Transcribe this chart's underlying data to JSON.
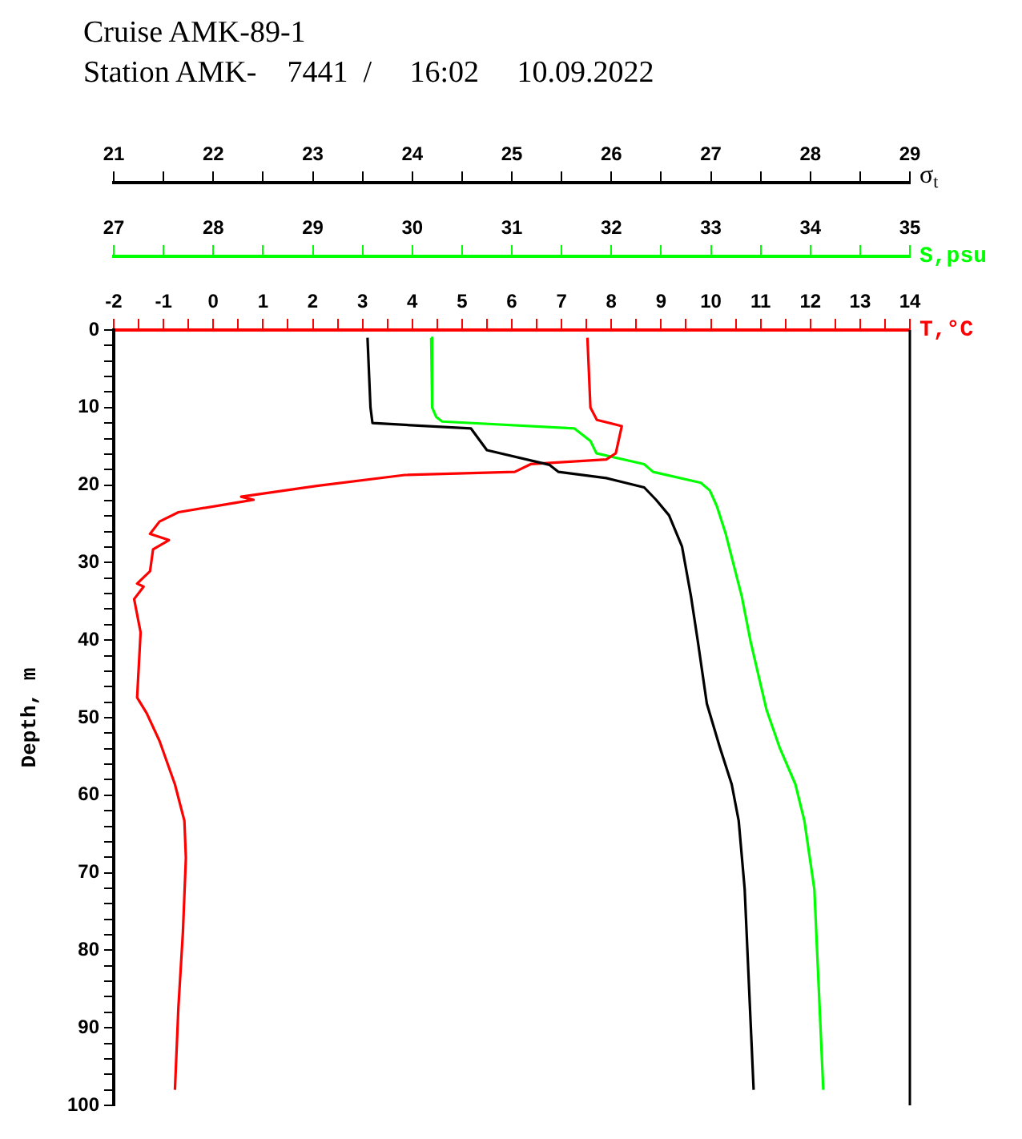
{
  "chart_data": [
    {
      "type": "line",
      "title": "Cruise AMK-89-1",
      "subtitle": "Station AMK-    7441  /     16:02     10.09.2022",
      "xlabel": "T,°C",
      "x2label": "S,psu",
      "ylabel": "Depth, m",
      "grid": false,
      "xlim": [
        -2,
        14
      ],
      "xticks": [
        -2,
        {
          "value": -1.5,
          "label": null
        },
        -1,
        {
          "value": -0.5,
          "label": null
        },
        0,
        {
          "value": 0.5,
          "label": null
        },
        1,
        {
          "value": 1.5,
          "label": null
        },
        2,
        {
          "value": 2.5,
          "label": null
        },
        3,
        {
          "value": 3.5,
          "label": null
        },
        4,
        {
          "value": 4.5,
          "label": null
        },
        5,
        {
          "value": 5.5,
          "label": null
        },
        6,
        {
          "value": 6.5,
          "label": null
        },
        7,
        {
          "value": 7.5,
          "label": null
        },
        8,
        {
          "value": 8.5,
          "label": null
        },
        9,
        {
          "value": 9.5,
          "label": null
        },
        10,
        {
          "value": 10.5,
          "label": null
        },
        11,
        {
          "value": 11.5,
          "label": null
        },
        12,
        {
          "value": 12.5,
          "label": null
        },
        13,
        {
          "value": 13.5,
          "label": null
        },
        14
      ],
      "x2lim": [
        27,
        35
      ],
      "x2ticks": [
        27,
        {
          "value": 27.5,
          "label": null
        },
        28,
        {
          "value": 28.5,
          "label": null
        },
        29,
        {
          "value": 29.5,
          "label": null
        },
        30,
        {
          "value": 30.5,
          "label": null
        },
        31,
        {
          "value": 31.5,
          "label": null
        },
        32,
        {
          "value": 32.5,
          "label": null
        },
        33,
        {
          "value": 33.5,
          "label": null
        },
        34,
        {
          "value": 34.5,
          "label": null
        },
        35
      ],
      "ylim": [
        100,
        0
      ],
      "yticks": [
        0,
        {
          "value": 2,
          "label": null
        },
        {
          "value": 4,
          "label": null
        },
        {
          "value": 6,
          "label": null
        },
        {
          "value": 8,
          "label": null
        },
        10,
        {
          "value": 12,
          "label": null
        },
        {
          "value": 14,
          "label": null
        },
        {
          "value": 16,
          "label": null
        },
        {
          "value": 18,
          "label": null
        },
        20,
        {
          "value": 22,
          "label": null
        },
        {
          "value": 24,
          "label": null
        },
        {
          "value": 26,
          "label": null
        },
        {
          "value": 28,
          "label": null
        },
        30,
        {
          "value": 32,
          "label": null
        },
        {
          "value": 34,
          "label": null
        },
        {
          "value": 36,
          "label": null
        },
        {
          "value": 38,
          "label": null
        },
        40,
        {
          "value": 42,
          "label": null
        },
        {
          "value": 44,
          "label": null
        },
        {
          "value": 46,
          "label": null
        },
        {
          "value": 48,
          "label": null
        },
        50,
        {
          "value": 52,
          "label": null
        },
        {
          "value": 54,
          "label": null
        },
        {
          "value": 56,
          "label": null
        },
        {
          "value": 58,
          "label": null
        },
        60,
        {
          "value": 62,
          "label": null
        },
        {
          "value": 64,
          "label": null
        },
        {
          "value": 66,
          "label": null
        },
        {
          "value": 68,
          "label": null
        },
        70,
        {
          "value": 72,
          "label": null
        },
        {
          "value": 74,
          "label": null
        },
        {
          "value": 76,
          "label": null
        },
        {
          "value": 78,
          "label": null
        },
        80,
        {
          "value": 82,
          "label": null
        },
        {
          "value": 84,
          "label": null
        },
        {
          "value": 86,
          "label": null
        },
        {
          "value": 88,
          "label": null
        },
        90,
        {
          "value": 92,
          "label": null
        },
        {
          "value": 94,
          "label": null
        },
        {
          "value": 96,
          "label": null
        },
        {
          "value": 98,
          "label": null
        },
        100
      ],
      "series": [
        {
          "color": "#ff0000",
          "x": [
            7.52,
            7.58,
            7.71,
            8.21,
            8.09,
            7.9,
            6.38,
            6.06,
            3.85,
            2.08,
            0.56,
            0.81,
            0.43,
            -0.7,
            -1.08,
            -1.27,
            -0.89,
            -1.21,
            -1.27,
            -1.53,
            -1.4,
            -1.59,
            -1.46,
            -1.53,
            -1.34,
            -1.08,
            -0.77,
            -0.58,
            -0.55,
            -0.61,
            -0.7,
            -0.77
          ],
          "values": [
            1,
            10,
            11.6,
            12.4,
            15.9,
            16.7,
            17.3,
            18.3,
            18.7,
            20.1,
            21.5,
            21.9,
            22.3,
            23.5,
            24.7,
            26.3,
            27.1,
            28.3,
            31.1,
            32.7,
            33.1,
            34.7,
            39,
            47.4,
            49.4,
            53,
            58.6,
            63.3,
            68.1,
            77.7,
            87.3,
            98
          ]
        },
        {
          "color": "#00ff00",
          "axis": "x2",
          "x": [
            30.19,
            30.2,
            30.24,
            30.3,
            31.63,
            31.79,
            31.85,
            32.33,
            32.42,
            32.9,
            32.99,
            33.06,
            33.15,
            33.31,
            33.4,
            33.56,
            33.69,
            33.85,
            33.94,
            34.04,
            34.13
          ],
          "values": [
            1,
            10,
            11.2,
            11.8,
            12.7,
            14.3,
            15.9,
            17.3,
            18.3,
            19.7,
            20.7,
            22.7,
            26.3,
            34.3,
            40.2,
            49,
            53.8,
            58.6,
            63.3,
            72.1,
            98
          ]
        }
      ]
    },
    {
      "type": "line",
      "xlabel": "σ$_{t}$",
      "tick_labels": "x",
      "grid": false,
      "xlim": [
        21,
        29
      ],
      "xticks": [
        21,
        {
          "value": 21.5,
          "label": null
        },
        22,
        {
          "value": 22.5,
          "label": null
        },
        23,
        {
          "value": 23.5,
          "label": null
        },
        24,
        {
          "value": 24.5,
          "label": null
        },
        25,
        {
          "value": 25.5,
          "label": null
        },
        26,
        {
          "value": 26.5,
          "label": null
        },
        27,
        {
          "value": 27.5,
          "label": null
        },
        28,
        {
          "value": 28.5,
          "label": null
        },
        29
      ],
      "ylim": [
        100,
        0
      ],
      "series": [
        {
          "color": "#000000",
          "x": [
            23.55,
            23.58,
            23.6,
            24.59,
            24.75,
            25.38,
            25.47,
            25.95,
            26.33,
            26.45,
            26.58,
            26.71,
            26.8,
            26.87,
            26.96,
            27.09,
            27.21,
            27.28,
            27.34,
            27.43
          ],
          "values": [
            1,
            10,
            12,
            12.7,
            15.5,
            17.4,
            18.3,
            19.1,
            20.3,
            21.9,
            23.9,
            27.9,
            34.3,
            40.2,
            48.2,
            53.8,
            58.6,
            63.3,
            72.1,
            98
          ]
        }
      ]
    }
  ]
}
